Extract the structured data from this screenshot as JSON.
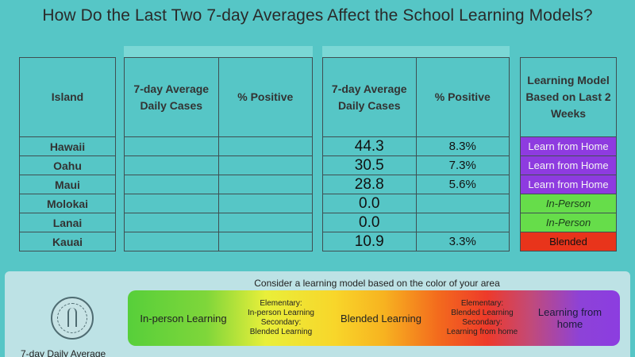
{
  "title": "How Do the Last Two 7-day Averages Affect the School Learning Models?",
  "table": {
    "col_island": "Island",
    "col_avg_cases": "7-day Average Daily Cases",
    "col_pct_positive": "% Positive",
    "col_model": "Learning Model Based on Last 2 Weeks",
    "rows": [
      {
        "island": "Hawaii",
        "cases": "44.3",
        "pct": "8.3%",
        "model": "Learn from Home",
        "model_type": "home"
      },
      {
        "island": "Oahu",
        "cases": "30.5",
        "pct": "7.3%",
        "model": "Learn from Home",
        "model_type": "home"
      },
      {
        "island": "Maui",
        "cases": "28.8",
        "pct": "5.6%",
        "model": "Learn from Home",
        "model_type": "home"
      },
      {
        "island": "Molokai",
        "cases": "0.0",
        "pct": "",
        "model": "In-Person",
        "model_type": "inperson"
      },
      {
        "island": "Lanai",
        "cases": "0.0",
        "pct": "",
        "model": "In-Person",
        "model_type": "inperson"
      },
      {
        "island": "Kauai",
        "cases": "10.9",
        "pct": "3.3%",
        "model": "Blended",
        "model_type": "blended"
      }
    ]
  },
  "legend": {
    "title": "Consider a learning model based on the color of your area",
    "seg1": "In-person Learning",
    "seg2": [
      "Elementary:",
      "In-person Learning",
      "Secondary:",
      "Blended Learning"
    ],
    "seg3": "Blended Learning",
    "seg4": [
      "Elementary:",
      "Blended Learning",
      "Secondary:",
      "Learning from home"
    ],
    "seg5": "Learning from home",
    "footer": "7-day Daily Average"
  },
  "colors": {
    "background": "#56c6c6",
    "learn_from_home": "#8e3be0",
    "in_person": "#66dd4a",
    "blended": "#e8341b"
  }
}
